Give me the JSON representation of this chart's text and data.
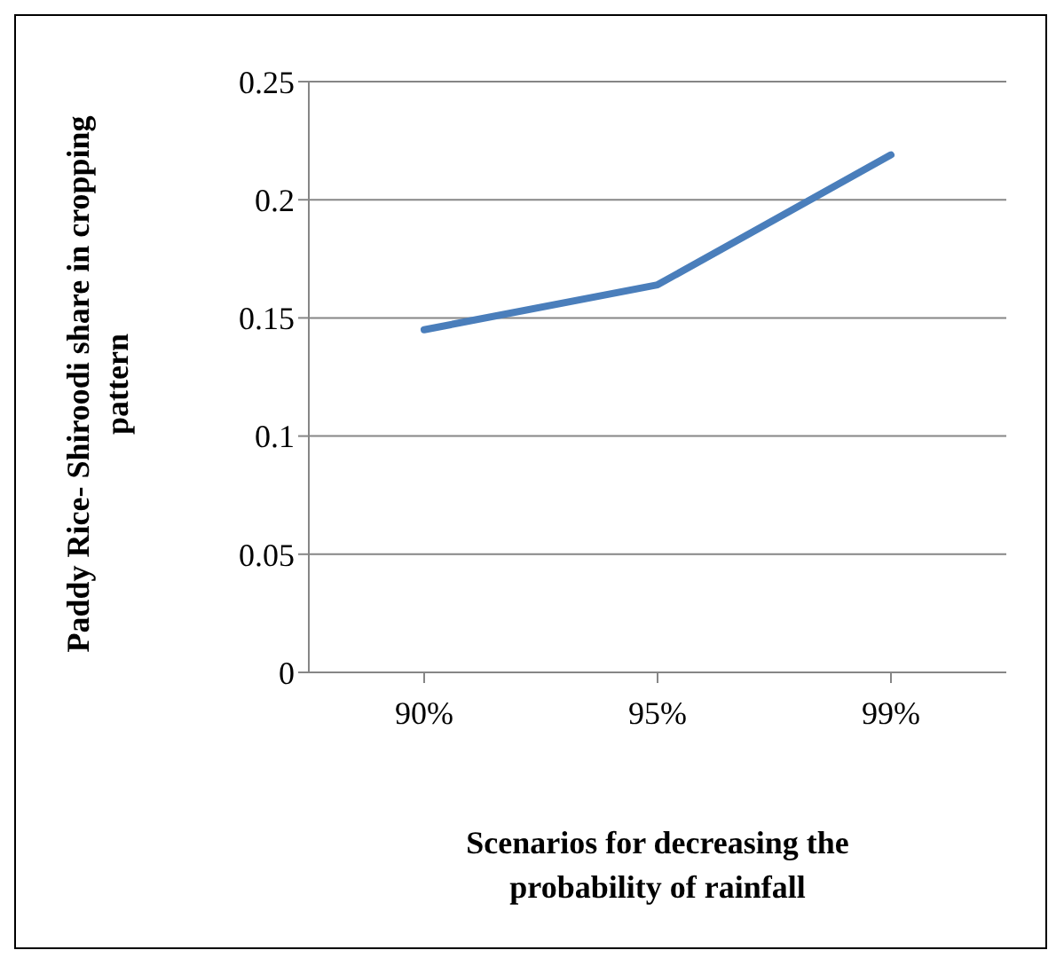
{
  "chart_data": {
    "type": "line",
    "xlabel": "Scenarios for decreasing the probability of rainfall",
    "ylabel": "Paddy Rice- Shiroodi share in cropping pattern",
    "categories": [
      "90%",
      "95%",
      "99%"
    ],
    "series": [
      {
        "color": "#4a7ebb",
        "values": [
          0.145,
          0.164,
          0.219
        ]
      }
    ],
    "ylim": [
      0,
      0.25
    ],
    "yticks": [
      0,
      0.05,
      0.1,
      0.15,
      0.2,
      0.25
    ],
    "grid": "y",
    "legend": false,
    "marker": "none",
    "line_style": "solid"
  }
}
